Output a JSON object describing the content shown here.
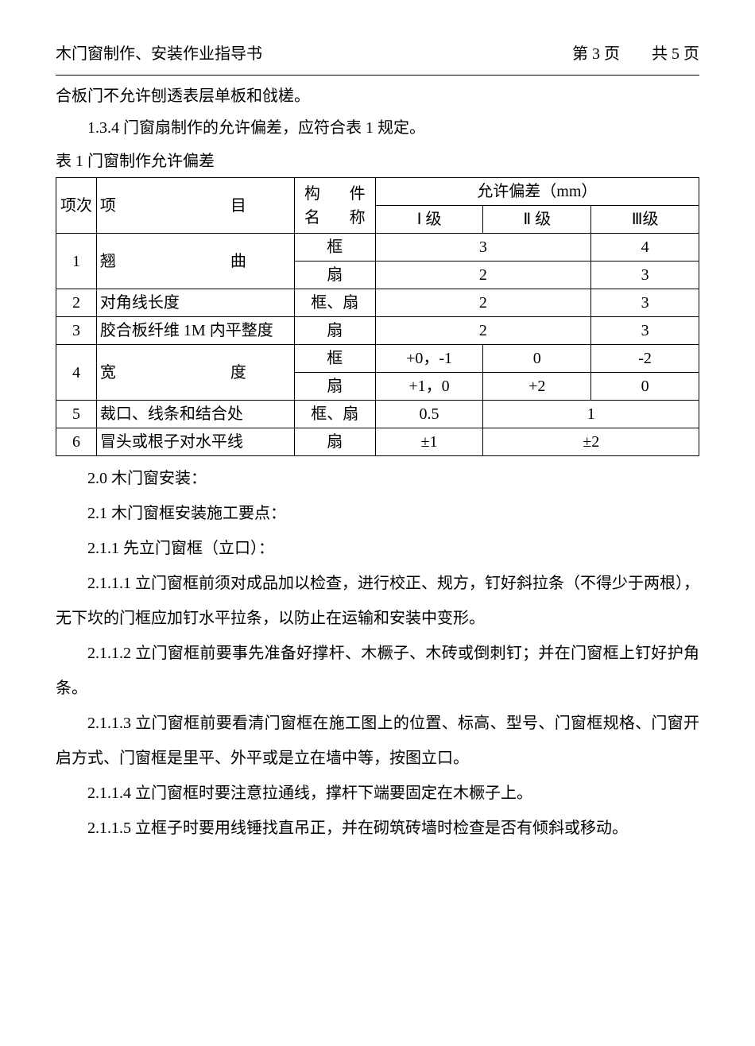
{
  "header": {
    "title": "木门窗制作、安装作业指导书",
    "page_info": "第 3 页　　共 5 页"
  },
  "intro": {
    "line1": "合板门不允许刨透表层单板和戗槎。",
    "line2": "1.3.4 门窗扇制作的允许偏差，应符合表 1 规定。",
    "table_title": "表 1 门窗制作允许偏差"
  },
  "table": {
    "headers": {
      "num": "项次",
      "item": "项　　　目",
      "comp": "构　件名　称",
      "allow": "允许偏差（mm）",
      "lv1": "Ⅰ 级",
      "lv2": "Ⅱ 级",
      "lv3": "Ⅲ级"
    },
    "rows": {
      "r1": {
        "num": "1",
        "item": "翘　　　曲",
        "c1": "框",
        "c2": "扇",
        "v1a": "3",
        "v1b": "4",
        "v2a": "2",
        "v2b": "3"
      },
      "r2": {
        "num": "2",
        "item": "对角线长度",
        "comp": "框、扇",
        "va": "2",
        "vb": "3"
      },
      "r3": {
        "num": "3",
        "item": "胶合板纤维 1M 内平整度",
        "comp": "扇",
        "va": "2",
        "vb": "3"
      },
      "r4": {
        "num": "4",
        "item": "宽　　　度",
        "c1": "框",
        "c2": "扇",
        "v1a": "+0，-1",
        "v1b": "0",
        "v1c": "-2",
        "v2a": "+1，0",
        "v2b": "+2",
        "v2c": "0"
      },
      "r5": {
        "num": "5",
        "item": "裁口、线条和结合处",
        "comp": "框、扇",
        "va": "0.5",
        "vb": "1"
      },
      "r6": {
        "num": "6",
        "item": "冒头或根子对水平线",
        "comp": "扇",
        "va": "±1",
        "vb": "±2"
      }
    }
  },
  "body": {
    "p1": "2.0 木门窗安装：",
    "p2": "2.1 木门窗框安装施工要点：",
    "p3": "2.1.1 先立门窗框（立口）：",
    "p4": "2.1.1.1 立门窗框前须对成品加以检查，进行校正、规方，钉好斜拉条（不得少于两根），无下坎的门框应加钉水平拉条，以防止在运输和安装中变形。",
    "p5": "2.1.1.2 立门窗框前要事先准备好撑杆、木橛子、木砖或倒刺钉；并在门窗框上钉好护角条。",
    "p6": "2.1.1.3 立门窗框前要看清门窗框在施工图上的位置、标高、型号、门窗框规格、门窗开启方式、门窗框是里平、外平或是立在墙中等，按图立口。",
    "p7": "2.1.1.4 立门窗框时要注意拉通线，撑杆下端要固定在木橛子上。",
    "p8": "2.1.1.5 立框子时要用线锤找直吊正，并在砌筑砖墙时检查是否有倾斜或移动。"
  }
}
